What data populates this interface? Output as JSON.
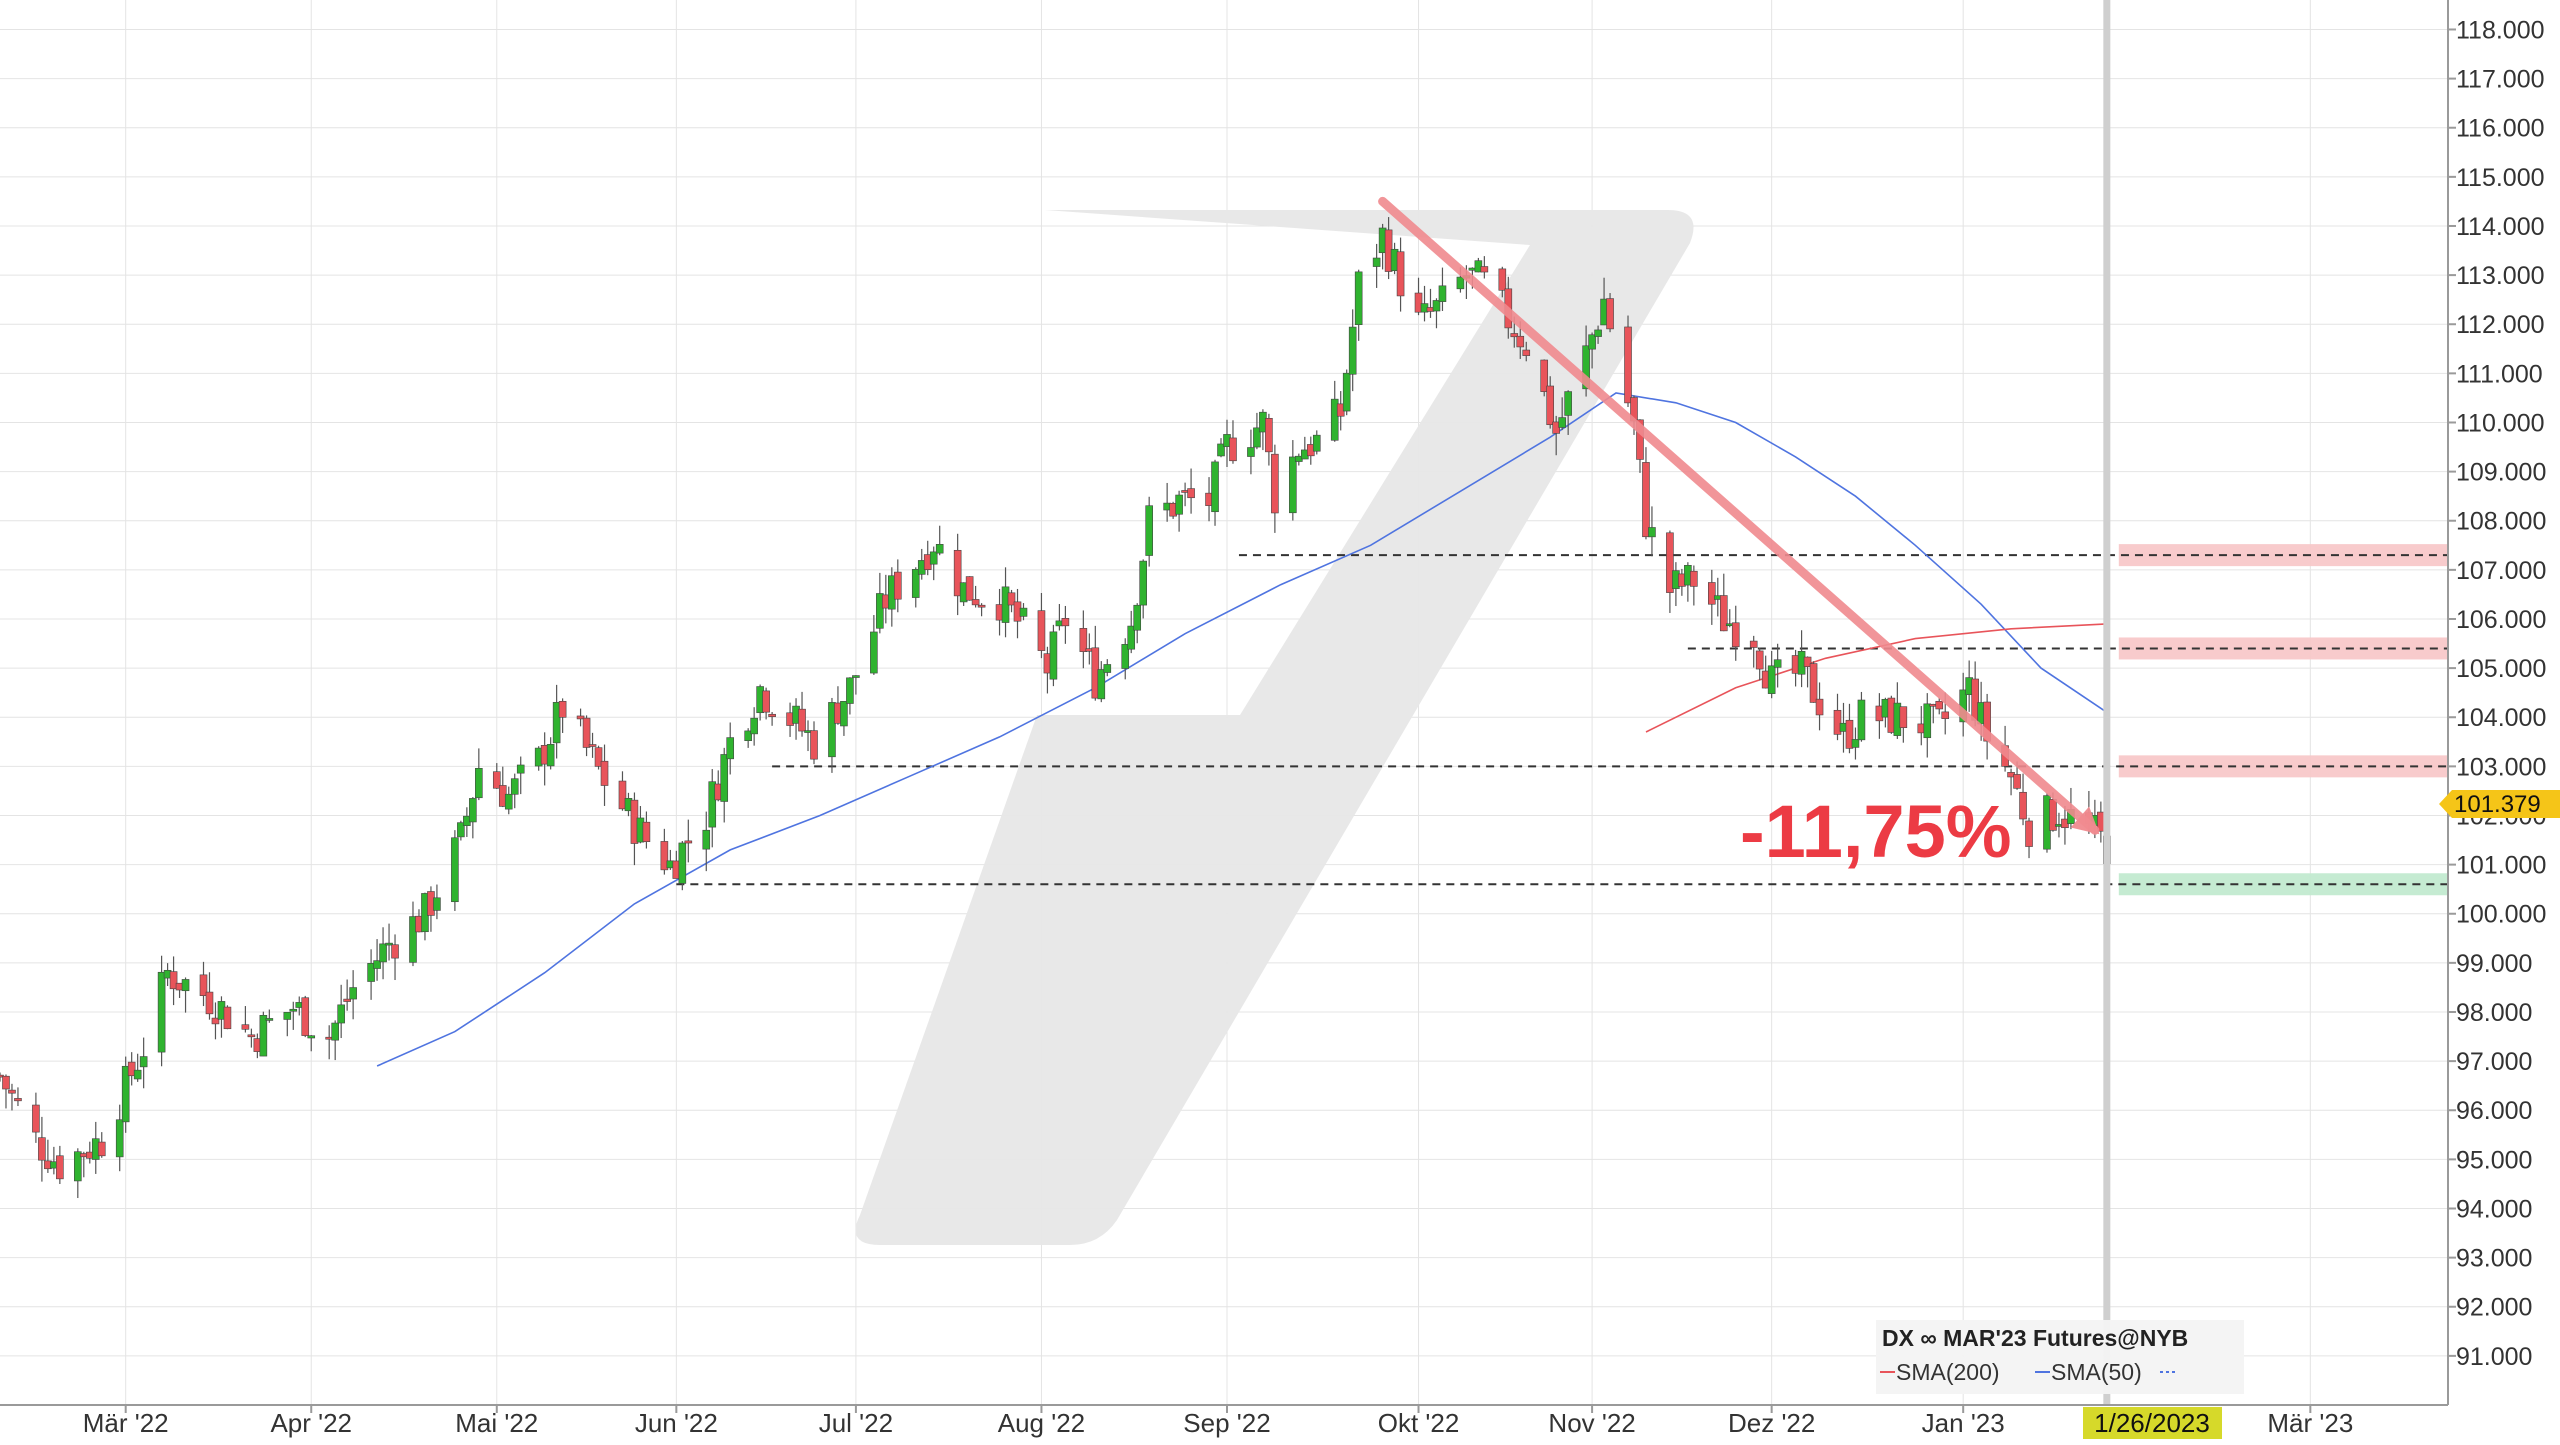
{
  "chart_data": {
    "type": "candlestick",
    "instrument_label": "DX ∞ MAR'23 Futures@NYB",
    "current_price_label": "101.379",
    "current_date_label": "1/26/2023",
    "change_label": "-11,75%",
    "ylim": [
      90.0,
      118.6
    ],
    "y_ticks": [
      "91.000",
      "92.000",
      "93.000",
      "94.000",
      "95.000",
      "96.000",
      "97.000",
      "98.000",
      "99.000",
      "100.000",
      "101.000",
      "102.000",
      "103.000",
      "104.000",
      "105.000",
      "106.000",
      "107.000",
      "108.000",
      "109.000",
      "110.000",
      "111.000",
      "112.000",
      "113.000",
      "114.000",
      "115.000",
      "116.000",
      "117.000",
      "118.000"
    ],
    "x_ticks": [
      {
        "label": "Mär '22",
        "date": "2022-03-01"
      },
      {
        "label": "Apr '22",
        "date": "2022-04-01"
      },
      {
        "label": "Mai '22",
        "date": "2022-05-02"
      },
      {
        "label": "Jun '22",
        "date": "2022-06-01"
      },
      {
        "label": "Jul '22",
        "date": "2022-07-01"
      },
      {
        "label": "Aug '22",
        "date": "2022-08-01"
      },
      {
        "label": "Sep '22",
        "date": "2022-09-01"
      },
      {
        "label": "Okt '22",
        "date": "2022-10-03"
      },
      {
        "label": "Nov '22",
        "date": "2022-11-01"
      },
      {
        "label": "Dez '22",
        "date": "2022-12-01"
      },
      {
        "label": "Jan '23",
        "date": "2023-01-02"
      },
      {
        "label": "Mär '23",
        "date": "2023-03-01"
      }
    ],
    "x_range": [
      "2022-02-08",
      "2023-03-24"
    ],
    "price_path": [
      [
        "2022-02-08",
        96.7
      ],
      [
        "2022-02-14",
        95.4
      ],
      [
        "2022-02-18",
        94.9
      ],
      [
        "2022-02-25",
        95.4
      ],
      [
        "2022-03-04",
        97.3
      ],
      [
        "2022-03-08",
        98.8
      ],
      [
        "2022-03-15",
        98.3
      ],
      [
        "2022-03-22",
        97.5
      ],
      [
        "2022-03-29",
        98.1
      ],
      [
        "2022-04-04",
        97.5
      ],
      [
        "2022-04-08",
        98.5
      ],
      [
        "2022-04-14",
        99.4
      ],
      [
        "2022-04-20",
        100.0
      ],
      [
        "2022-04-26",
        101.5
      ],
      [
        "2022-04-29",
        103.0
      ],
      [
        "2022-05-04",
        102.4
      ],
      [
        "2022-05-09",
        103.1
      ],
      [
        "2022-05-13",
        104.2
      ],
      [
        "2022-05-19",
        102.9
      ],
      [
        "2022-05-24",
        102.0
      ],
      [
        "2022-05-27",
        101.5
      ],
      [
        "2022-05-31",
        101.0
      ],
      [
        "2022-06-06",
        102.0
      ],
      [
        "2022-06-10",
        103.5
      ],
      [
        "2022-06-15",
        104.6
      ],
      [
        "2022-06-20",
        104.0
      ],
      [
        "2022-06-24",
        103.5
      ],
      [
        "2022-06-30",
        104.6
      ],
      [
        "2022-07-06",
        106.4
      ],
      [
        "2022-07-14",
        107.6
      ],
      [
        "2022-07-19",
        106.6
      ],
      [
        "2022-07-25",
        106.4
      ],
      [
        "2022-07-29",
        105.8
      ],
      [
        "2022-08-02",
        105.0
      ],
      [
        "2022-08-05",
        106.0
      ],
      [
        "2022-08-10",
        104.8
      ],
      [
        "2022-08-16",
        106.0
      ],
      [
        "2022-08-19",
        108.0
      ],
      [
        "2022-08-24",
        108.4
      ],
      [
        "2022-08-29",
        108.4
      ],
      [
        "2022-09-01",
        109.5
      ],
      [
        "2022-09-07",
        110.0
      ],
      [
        "2022-09-09",
        108.5
      ],
      [
        "2022-09-13",
        109.5
      ],
      [
        "2022-09-16",
        109.6
      ],
      [
        "2022-09-20",
        110.2
      ],
      [
        "2022-09-23",
        112.8
      ],
      [
        "2022-09-27",
        113.8
      ],
      [
        "2022-10-03",
        112.0
      ],
      [
        "2022-10-07",
        112.4
      ],
      [
        "2022-10-11",
        113.0
      ],
      [
        "2022-10-14",
        112.8
      ],
      [
        "2022-10-21",
        111.6
      ],
      [
        "2022-10-26",
        109.8
      ],
      [
        "2022-10-31",
        111.4
      ],
      [
        "2022-11-03",
        112.5
      ],
      [
        "2022-11-08",
        109.9
      ],
      [
        "2022-11-10",
        108.0
      ],
      [
        "2022-11-14",
        106.6
      ],
      [
        "2022-11-18",
        106.8
      ],
      [
        "2022-11-23",
        106.0
      ],
      [
        "2022-11-28",
        105.7
      ],
      [
        "2022-12-01",
        104.7
      ],
      [
        "2022-12-06",
        104.9
      ],
      [
        "2022-12-13",
        103.6
      ],
      [
        "2022-12-16",
        104.0
      ],
      [
        "2022-12-22",
        104.0
      ],
      [
        "2022-12-29",
        103.8
      ],
      [
        "2023-01-03",
        104.6
      ],
      [
        "2023-01-06",
        103.6
      ],
      [
        "2023-01-10",
        102.8
      ],
      [
        "2023-01-13",
        101.8
      ],
      [
        "2023-01-18",
        102.1
      ],
      [
        "2023-01-23",
        101.7
      ],
      [
        "2023-01-26",
        101.4
      ]
    ],
    "sma50_path": [
      [
        "2022-04-12",
        96.9
      ],
      [
        "2022-04-25",
        97.6
      ],
      [
        "2022-05-10",
        98.8
      ],
      [
        "2022-05-25",
        100.2
      ],
      [
        "2022-06-10",
        101.3
      ],
      [
        "2022-06-25",
        102.0
      ],
      [
        "2022-07-10",
        102.8
      ],
      [
        "2022-07-25",
        103.6
      ],
      [
        "2022-08-10",
        104.6
      ],
      [
        "2022-08-25",
        105.7
      ],
      [
        "2022-09-10",
        106.7
      ],
      [
        "2022-09-25",
        107.5
      ],
      [
        "2022-10-10",
        108.6
      ],
      [
        "2022-10-25",
        109.7
      ],
      [
        "2022-11-05",
        110.6
      ],
      [
        "2022-11-15",
        110.4
      ],
      [
        "2022-11-25",
        110.0
      ],
      [
        "2022-12-05",
        109.3
      ],
      [
        "2022-12-15",
        108.5
      ],
      [
        "2022-12-25",
        107.5
      ],
      [
        "2023-01-05",
        106.3
      ],
      [
        "2023-01-15",
        105.0
      ],
      [
        "2023-01-26",
        104.1
      ]
    ],
    "sma200_path": [
      [
        "2022-11-10",
        103.7
      ],
      [
        "2022-11-25",
        104.6
      ],
      [
        "2022-12-10",
        105.2
      ],
      [
        "2022-12-25",
        105.6
      ],
      [
        "2023-01-10",
        105.8
      ],
      [
        "2023-01-26",
        105.9
      ]
    ],
    "trend_arrow": {
      "from": [
        "2022-09-27",
        114.5
      ],
      "to": [
        "2023-01-24",
        101.7
      ]
    },
    "levels": [
      {
        "value": 107.3,
        "from": "2022-09-03",
        "to": "2023-03-24",
        "zone": "red"
      },
      {
        "value": 105.4,
        "from": "2022-11-17",
        "to": "2023-03-24",
        "zone": "red"
      },
      {
        "value": 103.0,
        "from": "2022-06-17",
        "to": "2023-03-24",
        "zone": "red"
      },
      {
        "value": 100.6,
        "from": "2022-06-01",
        "to": "2023-03-24",
        "zone": "green"
      }
    ],
    "legend": [
      {
        "label": "SMA(200)",
        "color": "#e8545a"
      },
      {
        "label": "SMA(50)",
        "color": "#4f74e0"
      }
    ],
    "colors": {
      "up": "#2fb32f",
      "down": "#e8545a",
      "sma50": "#4f74e0",
      "sma200": "#e8545a",
      "arrow": "#f08a8f",
      "change_text": "#ec3b44",
      "resistance_zone": "#f7c5c7",
      "support_zone": "#bfe9cd",
      "price_tag": "#f5c518",
      "date_tag": "#d6d92a",
      "grid": "#e4e4e4"
    }
  }
}
